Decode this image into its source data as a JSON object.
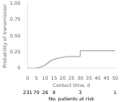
{
  "chart_data": {
    "type": "step",
    "xlabel": "Contact time, d",
    "ylabel": "Probability of transmission",
    "x": [
      0,
      5,
      7,
      8,
      9,
      10,
      11,
      12,
      13,
      14,
      15,
      16,
      17,
      18,
      19,
      20,
      21,
      22,
      23,
      30,
      50
    ],
    "values": [
      0.0,
      0.01,
      0.02,
      0.03,
      0.04,
      0.06,
      0.08,
      0.1,
      0.12,
      0.13,
      0.14,
      0.15,
      0.155,
      0.16,
      0.165,
      0.17,
      0.175,
      0.178,
      0.18,
      0.27,
      0.27
    ],
    "color": "#999999",
    "xlim": [
      0,
      50
    ],
    "ylim": [
      0,
      1.0
    ],
    "xticks": [
      0,
      5,
      10,
      15,
      20,
      25,
      30,
      35,
      40,
      45,
      50
    ],
    "yticks": [
      0,
      0.25,
      {
        "value": 0.5,
        "label": "0.50"
      },
      0.75,
      {
        "value": 1,
        "label": "1.00"
      }
    ],
    "grid": false,
    "risk_table": {
      "label": "No. patients at risk",
      "x": [
        0,
        5,
        10,
        15,
        30,
        50
      ],
      "values": [
        231,
        70,
        26,
        9,
        3,
        1
      ]
    }
  }
}
